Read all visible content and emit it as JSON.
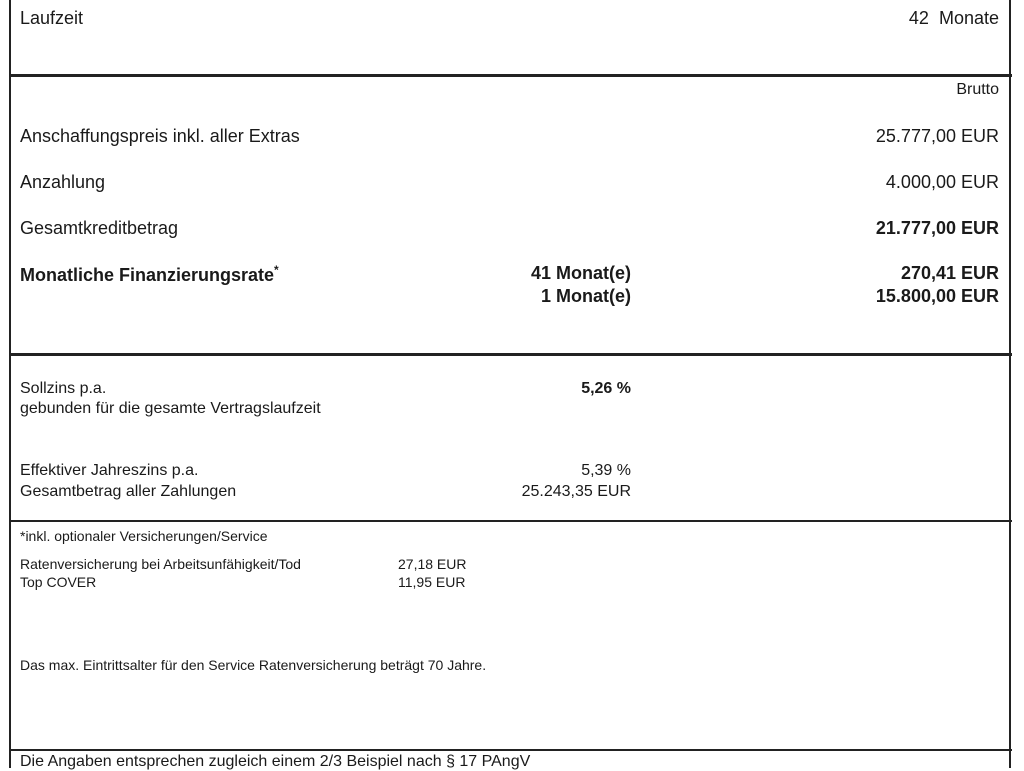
{
  "laufzeit": {
    "label": "Laufzeit",
    "value": "42",
    "unit": "Monate"
  },
  "brutto": "Brutto",
  "rows": [
    {
      "label": "Anschaffungspreis inkl. aller Extras",
      "value": "25.777,00 EUR"
    },
    {
      "label": "Anzahlung",
      "value": "4.000,00 EUR"
    },
    {
      "label": "Gesamtkreditbetrag",
      "value": "21.777,00 EUR"
    }
  ],
  "rate": {
    "label": "Monatliche Finanzierungsrate",
    "asterisk": "*",
    "months1": "41 Monat(e)",
    "value1": "270,41 EUR",
    "months2": "1 Monat(e)",
    "value2": "15.800,00 EUR"
  },
  "zins": {
    "soll_label": "Sollzins p.a.",
    "soll_sub": "gebunden für die gesamte Vertragslaufzeit",
    "soll_value": "5,26 %",
    "eff_label": "Effektiver Jahreszins p.a.",
    "eff_value": "5,39 %",
    "gesamt_label": "Gesamtbetrag aller Zahlungen",
    "gesamt_value": "25.243,35 EUR"
  },
  "versicherung": {
    "heading": "*inkl. optionaler Versicherungen/Service",
    "items": [
      {
        "label": "Ratenversicherung bei Arbeitsunfähigkeit/Tod",
        "value": "27,18 EUR"
      },
      {
        "label": "Top COVER",
        "value": "11,95 EUR"
      }
    ],
    "note": "Das max. Eintrittsalter für den Service Ratenversicherung beträgt 70 Jahre."
  },
  "footer": "Die Angaben entsprechen zugleich einem 2/3 Beispiel nach § 17 PAngV"
}
